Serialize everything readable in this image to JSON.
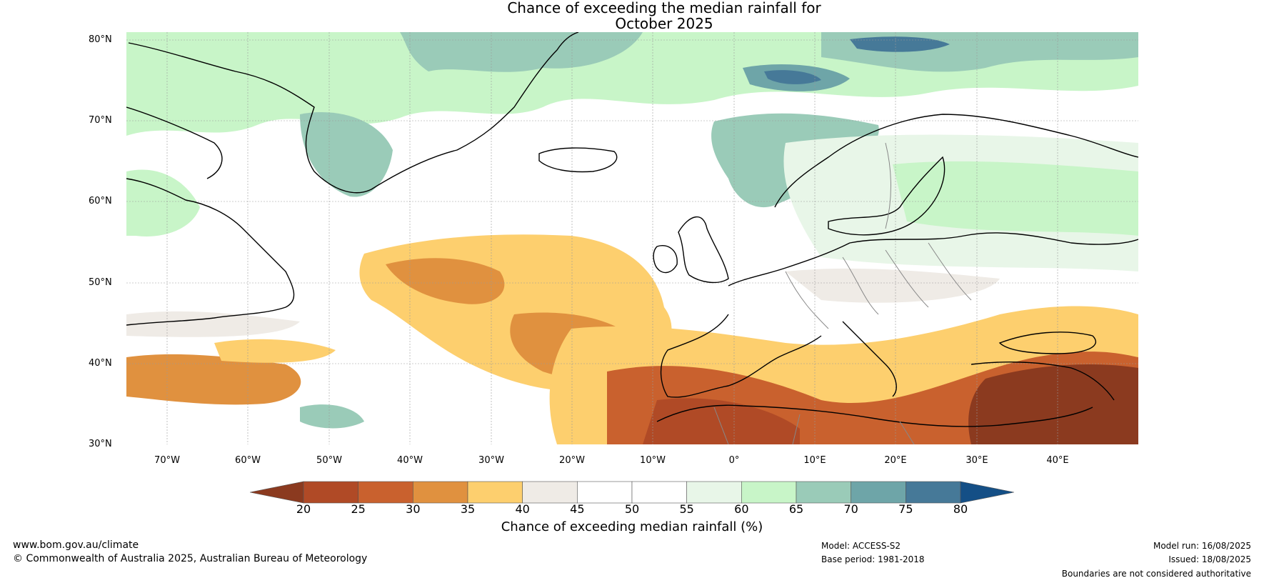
{
  "title_line1": "Chance of exceeding the median rainfall for",
  "title_line2": "October 2025",
  "lat_labels": [
    "80°N",
    "70°N",
    "60°N",
    "50°N",
    "40°N",
    "30°N"
  ],
  "lon_labels": [
    "70°W",
    "60°W",
    "50°W",
    "40°W",
    "30°W",
    "20°W",
    "10°W",
    "0°",
    "10°E",
    "20°E",
    "30°E",
    "40°E"
  ],
  "colorbar": {
    "ticks": [
      "20",
      "25",
      "30",
      "35",
      "40",
      "45",
      "50",
      "55",
      "60",
      "65",
      "70",
      "75",
      "80"
    ],
    "colors": [
      "#8b3a1f",
      "#b04a26",
      "#c9612e",
      "#e0913f",
      "#fdcf6e",
      "#efebe6",
      "#ffffff",
      "#ffffff",
      "#e8f6e8",
      "#c8f5c8",
      "#9acbb8",
      "#6ea5a8",
      "#467998",
      "#144f86"
    ],
    "label": "Chance of exceeding median rainfall (%)"
  },
  "footer": {
    "website": "www.bom.gov.au/climate",
    "copyright": "© Commonwealth of Australia 2025, Australian Bureau of Meteorology",
    "model": "Model: ACCESS-S2",
    "base_period": "Base period: 1981-2018",
    "model_run": "Model run: 16/08/2025",
    "issued": "Issued: 18/08/2025",
    "disclaimer": "Boundaries are not considered authoritative"
  }
}
